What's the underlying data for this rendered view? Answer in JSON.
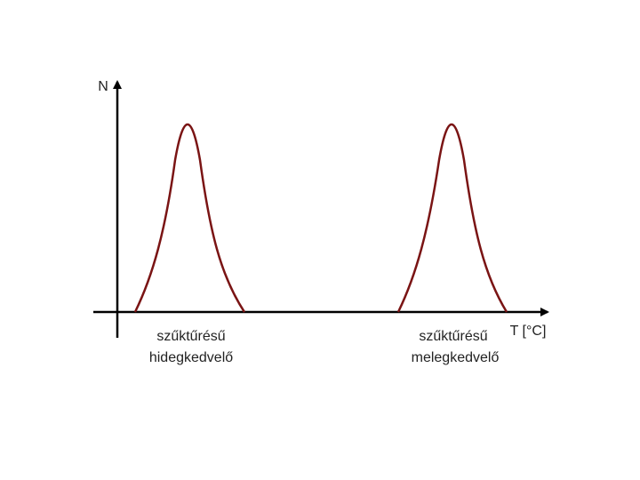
{
  "axes": {
    "y_label": "N",
    "x_label": "T [°C]"
  },
  "curves": [
    {
      "label_line1": "szűktűrésű",
      "label_line2": "hidegkedvelő"
    },
    {
      "label_line1": "szűktűrésű",
      "label_line2": "melegkedvelő"
    }
  ]
}
